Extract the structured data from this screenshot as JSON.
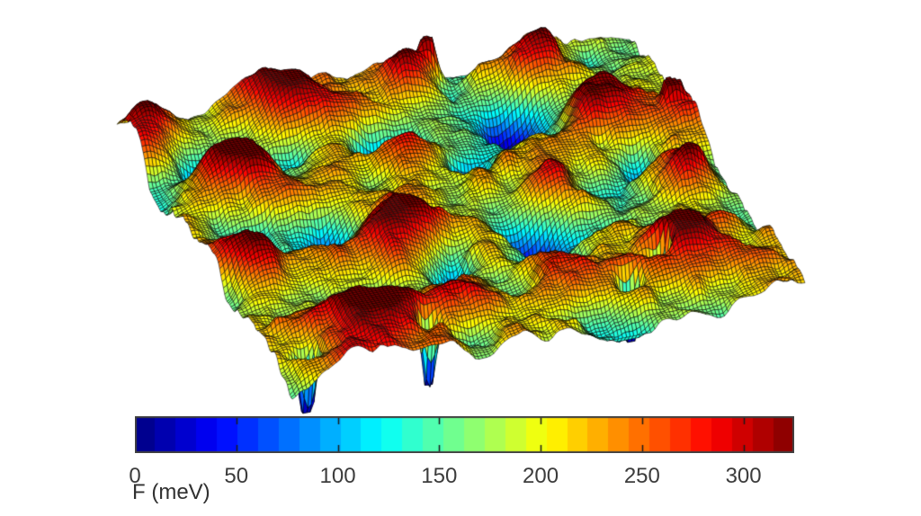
{
  "figure": {
    "background": "#ffffff",
    "mesh_edge_color": "#000000"
  },
  "chart_data": {
    "type": "surface",
    "title": "",
    "colormap": "jet",
    "colormap_levels": 32,
    "colorbar": {
      "orientation": "horizontal",
      "label": "F (meV)",
      "min": 0,
      "max": 325,
      "tick_color": "#3c3c3c",
      "border_color": "#404040",
      "ticks": [
        {
          "value": 0,
          "label": "0"
        },
        {
          "value": 50,
          "label": "50"
        },
        {
          "value": 100,
          "label": "100"
        },
        {
          "value": 150,
          "label": "150"
        },
        {
          "value": 200,
          "label": "200"
        },
        {
          "value": 250,
          "label": "250"
        },
        {
          "value": 300,
          "label": "300"
        }
      ]
    },
    "surface": {
      "description": "Rough free-energy landscape F(x,y) drawn as a dense black wire mesh colored by F (jet colormap): mostly yellow/orange terrain ~150-250 meV with many rounded red peaks saturating near 300-325 meV, scattered cyan/blue basins near 0-100 meV, and a few narrow deep funnels dropping toward 0 meV along the lower edge; parallelogram-shaped domain viewed obliquely, highest corner at back-right.",
      "mesh_cells": 140,
      "base_level_meV": 185,
      "seed": 7,
      "noise_octaves": [
        {
          "cells": 8,
          "amp": 68
        },
        {
          "cells": 16,
          "amp": 40
        },
        {
          "cells": 32,
          "amp": 20
        },
        {
          "cells": 64,
          "amp": 10
        }
      ],
      "features": [
        {
          "u": 0.04,
          "v": 0.05,
          "amp": 150,
          "sigma": 0.05
        },
        {
          "u": 0.3,
          "v": 0.07,
          "amp": 130,
          "sigma": 0.05
        },
        {
          "u": 0.55,
          "v": 0.04,
          "amp": 140,
          "sigma": 0.04
        },
        {
          "u": 0.8,
          "v": 0.08,
          "amp": 150,
          "sigma": 0.05
        },
        {
          "u": 0.15,
          "v": 0.3,
          "amp": 140,
          "sigma": 0.05
        },
        {
          "u": 0.48,
          "v": 0.28,
          "amp": 120,
          "sigma": 0.04
        },
        {
          "u": 0.85,
          "v": 0.28,
          "amp": 150,
          "sigma": 0.05
        },
        {
          "u": 0.08,
          "v": 0.58,
          "amp": 130,
          "sigma": 0.05
        },
        {
          "u": 0.35,
          "v": 0.55,
          "amp": 140,
          "sigma": 0.06
        },
        {
          "u": 0.67,
          "v": 0.5,
          "amp": 130,
          "sigma": 0.05
        },
        {
          "u": 0.92,
          "v": 0.58,
          "amp": 140,
          "sigma": 0.05
        },
        {
          "u": 0.18,
          "v": 0.86,
          "amp": 150,
          "sigma": 0.06
        },
        {
          "u": 0.38,
          "v": 0.84,
          "amp": 140,
          "sigma": 0.05
        },
        {
          "u": 0.6,
          "v": 0.78,
          "amp": 130,
          "sigma": 0.05
        },
        {
          "u": 0.82,
          "v": 0.8,
          "amp": 130,
          "sigma": 0.05
        },
        {
          "u": 0.44,
          "v": 0.22,
          "amp": -160,
          "sigma": 0.035
        },
        {
          "u": 0.7,
          "v": 0.18,
          "amp": -150,
          "sigma": 0.04
        },
        {
          "u": 0.6,
          "v": 0.6,
          "amp": -170,
          "sigma": 0.04
        },
        {
          "u": 0.25,
          "v": 0.45,
          "amp": -150,
          "sigma": 0.035
        },
        {
          "u": 0.86,
          "v": 0.44,
          "amp": -140,
          "sigma": 0.03
        },
        {
          "u": 0.1,
          "v": 0.15,
          "amp": -120,
          "sigma": 0.03
        },
        {
          "u": 0.42,
          "v": 0.68,
          "amp": -150,
          "sigma": 0.03
        },
        {
          "u": 0.58,
          "v": 0.33,
          "amp": -140,
          "sigma": 0.03
        },
        {
          "u": 0.06,
          "v": 0.91,
          "amp": -320,
          "sigma": 0.013
        },
        {
          "u": 0.7,
          "v": 0.88,
          "amp": -360,
          "sigma": 0.012
        },
        {
          "u": 0.78,
          "v": 0.82,
          "amp": -360,
          "sigma": 0.012
        },
        {
          "u": 0.3,
          "v": 0.9,
          "amp": -300,
          "sigma": 0.012
        },
        {
          "u": 0.97,
          "v": 0.33,
          "amp": 240,
          "sigma": 0.01
        },
        {
          "u": 0.6,
          "v": 0.02,
          "amp": 160,
          "sigma": 0.012
        }
      ]
    }
  }
}
